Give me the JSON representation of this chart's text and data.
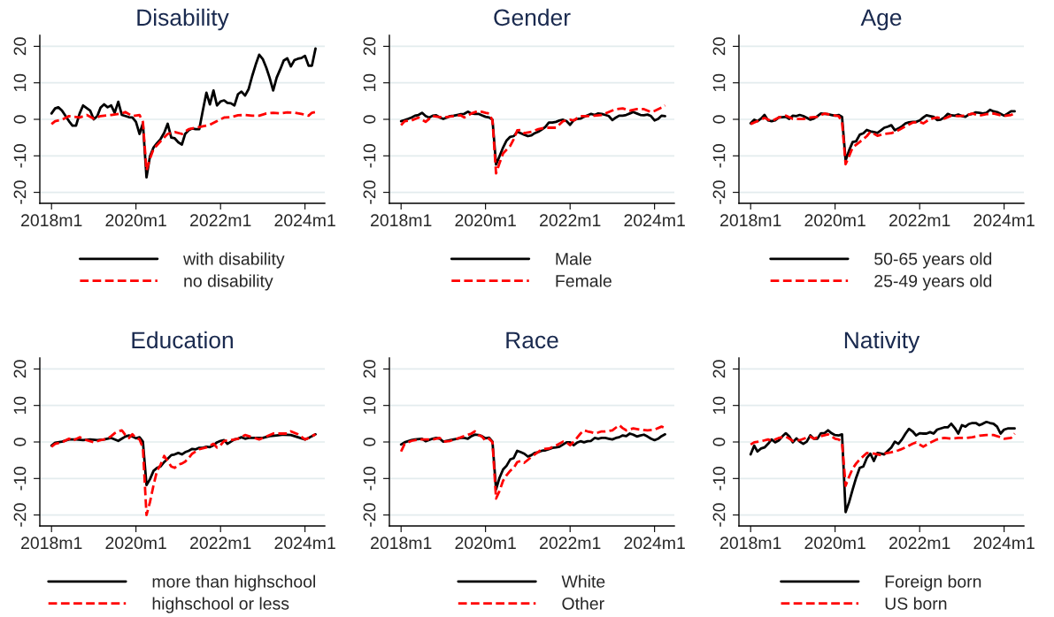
{
  "chart_data": [
    {
      "type": "line",
      "title": "Disability",
      "xlim": [
        "2017-09-22",
        "2024-06-20"
      ],
      "ylim": [
        -23,
        23
      ],
      "xticks": [
        {
          "value": "2018-01",
          "label": "2018m1"
        },
        {
          "value": "2020-01",
          "label": "2020m1"
        },
        {
          "value": "2022-01",
          "label": "2022m1"
        },
        {
          "value": "2024-01",
          "label": "2024m1"
        }
      ],
      "yticks": [
        -20,
        -10,
        0,
        10,
        20
      ],
      "grid": "y",
      "legend": "bottom",
      "series": [
        {
          "name": "with disability",
          "color": "#000000",
          "line_style": "solid",
          "x": [
            "2018-01",
            "2018-02",
            "2018-03",
            "2018-04",
            "2018-06",
            "2018-07",
            "2018-08",
            "2018-09",
            "2018-10",
            "2018-12",
            "2019-01",
            "2019-02",
            "2019-03",
            "2019-04",
            "2019-05",
            "2019-06",
            "2019-07",
            "2019-08",
            "2019-09",
            "2019-10",
            "2019-11",
            "2019-12",
            "2020-01",
            "2020-02",
            "2020-03",
            "2020-04",
            "2020-05",
            "2020-06",
            "2020-07",
            "2020-08",
            "2020-09",
            "2020-10",
            "2020-11",
            "2020-12",
            "2021-01",
            "2021-02",
            "2021-03",
            "2021-04",
            "2021-05",
            "2021-06",
            "2021-07",
            "2021-08",
            "2021-09",
            "2021-10",
            "2021-11",
            "2021-12",
            "2022-01",
            "2022-02",
            "2022-03",
            "2022-04",
            "2022-05",
            "2022-06",
            "2022-07",
            "2022-08",
            "2022-09",
            "2022-10",
            "2022-11",
            "2022-12",
            "2023-01",
            "2023-02",
            "2023-03",
            "2023-04",
            "2023-05",
            "2023-06",
            "2023-07",
            "2023-08",
            "2023-09",
            "2023-10",
            "2023-11",
            "2023-12",
            "2024-01",
            "2024-02",
            "2024-03",
            "2024-04"
          ],
          "values": [
            1.6,
            3.0,
            3.3,
            2.4,
            -0.5,
            -1.7,
            -1.7,
            1.6,
            3.8,
            2.4,
            0,
            0.9,
            3.2,
            4.1,
            3.3,
            3.8,
            1.8,
            4.8,
            1.2,
            0.9,
            0.6,
            0.5,
            -0.7,
            -4.0,
            -1.1,
            -15.9,
            -10.1,
            -7.7,
            -6.5,
            -5.4,
            -3.7,
            -1.2,
            -5.0,
            -5.2,
            -6.3,
            -6.9,
            -4.0,
            -3.0,
            -2.5,
            -2.7,
            -2.7,
            2.4,
            7.3,
            4.1,
            7.9,
            3.8,
            4.9,
            5.2,
            4.5,
            4.4,
            3.8,
            6.9,
            7.6,
            6.5,
            8.3,
            11.8,
            15.0,
            17.7,
            16.5,
            14.1,
            11.4,
            7.9,
            11.4,
            13.7,
            16.1,
            16.7,
            14.5,
            16.2,
            16.6,
            16.8,
            17.4,
            14.7,
            14.7,
            19.4
          ]
        },
        {
          "name": "no disability",
          "color": "#ff0000",
          "line_style": "dashed",
          "x": [
            "2018-01",
            "2018-02",
            "2018-04",
            "2018-06",
            "2018-09",
            "2018-11",
            "2019-01",
            "2019-03",
            "2019-06",
            "2019-09",
            "2019-10",
            "2019-12",
            "2020-02",
            "2020-03",
            "2020-04",
            "2020-05",
            "2020-06",
            "2020-08",
            "2020-10",
            "2020-12",
            "2021-02",
            "2021-04",
            "2021-06",
            "2021-08",
            "2021-10",
            "2021-12",
            "2022-02",
            "2022-04",
            "2022-06",
            "2022-08",
            "2022-10",
            "2022-12",
            "2023-02",
            "2023-04",
            "2023-06",
            "2023-08",
            "2023-10",
            "2023-12",
            "2024-02",
            "2024-03",
            "2024-04"
          ],
          "values": [
            -1.3,
            -0.5,
            -0.1,
            0.9,
            0.5,
            1.2,
            0.2,
            0.9,
            1.2,
            1.6,
            2.0,
            0.9,
            1.2,
            -0.7,
            -14.0,
            -10.8,
            -8.1,
            -6.0,
            -4.0,
            -3.5,
            -4.0,
            -2.7,
            -2.3,
            -1.9,
            -1.5,
            -0.5,
            0.5,
            0.6,
            1.1,
            1.2,
            1.0,
            1.0,
            1.6,
            1.8,
            1.6,
            1.9,
            1.8,
            1.5,
            1.0,
            1.8,
            2.0
          ]
        }
      ]
    },
    {
      "type": "line",
      "title": "Gender",
      "xlim": [
        "2017-09-22",
        "2024-06-20"
      ],
      "ylim": [
        -23,
        23
      ],
      "xticks": [
        {
          "value": "2018-01",
          "label": "2018m1"
        },
        {
          "value": "2020-01",
          "label": "2020m1"
        },
        {
          "value": "2022-01",
          "label": "2022m1"
        },
        {
          "value": "2024-01",
          "label": "2024m1"
        }
      ],
      "yticks": [
        -20,
        -10,
        0,
        10,
        20
      ],
      "grid": "y",
      "legend": "bottom",
      "x": [
        "2018-01",
        "2018-02",
        "2018-03",
        "2018-04",
        "2018-05",
        "2018-06",
        "2018-07",
        "2018-08",
        "2018-09",
        "2018-10",
        "2018-11",
        "2018-12",
        "2019-01",
        "2019-02",
        "2019-03",
        "2019-04",
        "2019-05",
        "2019-06",
        "2019-07",
        "2019-08",
        "2019-09",
        "2019-10",
        "2019-11",
        "2019-12",
        "2020-01",
        "2020-02",
        "2020-03",
        "2020-04",
        "2020-05",
        "2020-06",
        "2020-07",
        "2020-08",
        "2020-09",
        "2020-10",
        "2020-11",
        "2020-12",
        "2021-01",
        "2021-02",
        "2021-03",
        "2021-04",
        "2021-05",
        "2021-06",
        "2021-07",
        "2021-08",
        "2021-09",
        "2021-10",
        "2021-11",
        "2021-12",
        "2022-01",
        "2022-02",
        "2022-03",
        "2022-04",
        "2022-05",
        "2022-06",
        "2022-07",
        "2022-08",
        "2022-09",
        "2022-10",
        "2022-11",
        "2022-12",
        "2023-01",
        "2023-02",
        "2023-03",
        "2023-04",
        "2023-05",
        "2023-06",
        "2023-07",
        "2023-08",
        "2023-09",
        "2023-10",
        "2023-11",
        "2023-12",
        "2024-01",
        "2024-02",
        "2024-03",
        "2024-04"
      ],
      "series": [
        {
          "name": "Male",
          "color": "#000000",
          "line_style": "solid",
          "values": [
            -0.5,
            -0.2,
            0.1,
            0.5,
            1.0,
            1.2,
            1.8,
            0.9,
            0.5,
            1.0,
            1.1,
            0.5,
            0.1,
            0.5,
            0.9,
            1.0,
            1.2,
            1.4,
            1.5,
            2.1,
            1.6,
            1.5,
            1.5,
            1.1,
            0.7,
            0.5,
            -0.1,
            -12.4,
            -10.1,
            -7.7,
            -5.8,
            -4.8,
            -4.6,
            -3.4,
            -3.8,
            -4.2,
            -4.6,
            -4.4,
            -3.8,
            -3.4,
            -2.8,
            -2.1,
            -0.9,
            -0.9,
            -0.7,
            -0.3,
            -0.1,
            -0.5,
            -1.5,
            -0.3,
            0.1,
            0.2,
            0.7,
            1.1,
            1.5,
            1.2,
            1.6,
            1.5,
            1.2,
            0.9,
            -0.2,
            0.5,
            1.0,
            1.0,
            1.2,
            1.6,
            2.0,
            1.6,
            1.2,
            1.1,
            1.3,
            0.9,
            -0.3,
            0.1,
            1.0,
            0.9
          ]
        },
        {
          "name": "Female",
          "color": "#ff0000",
          "line_style": "dashed",
          "x": [
            "2018-01",
            "2018-02",
            "2018-04",
            "2018-06",
            "2018-08",
            "2018-10",
            "2019-01",
            "2019-04",
            "2019-06",
            "2019-07",
            "2019-09",
            "2019-11",
            "2020-01",
            "2020-02",
            "2020-03",
            "2020-04",
            "2020-05",
            "2020-06",
            "2020-08",
            "2020-09",
            "2020-10",
            "2020-11",
            "2020-12",
            "2021-02",
            "2021-04",
            "2021-06",
            "2021-07",
            "2021-09",
            "2021-11",
            "2022-01",
            "2022-02",
            "2022-04",
            "2022-06",
            "2022-08",
            "2022-10",
            "2022-12",
            "2023-02",
            "2023-04",
            "2023-06",
            "2023-08",
            "2023-10",
            "2023-12",
            "2024-01",
            "2024-03",
            "2024-04"
          ],
          "values": [
            -1.6,
            -0.5,
            -0.3,
            0.5,
            -0.7,
            0.9,
            0.5,
            0.9,
            1.1,
            0.5,
            1.6,
            2.3,
            1.8,
            1.6,
            -0.3,
            -14.8,
            -12.0,
            -9.3,
            -7.3,
            -5.4,
            -3.0,
            -2.9,
            -3.8,
            -3.4,
            -2.7,
            -2.3,
            -2.3,
            -2.3,
            -0.5,
            -0.1,
            -0.3,
            0.9,
            0.9,
            1.0,
            1.2,
            2.0,
            2.8,
            3.0,
            2.4,
            2.8,
            2.8,
            2.0,
            2.3,
            3.2,
            3.8
          ]
        }
      ]
    },
    {
      "type": "line",
      "title": "Age",
      "xlim": [
        "2017-09-22",
        "2024-06-20"
      ],
      "ylim": [
        -23,
        23
      ],
      "xticks": [
        {
          "value": "2018-01",
          "label": "2018m1"
        },
        {
          "value": "2020-01",
          "label": "2020m1"
        },
        {
          "value": "2022-01",
          "label": "2022m1"
        },
        {
          "value": "2024-01",
          "label": "2024m1"
        }
      ],
      "yticks": [
        -20,
        -10,
        0,
        10,
        20
      ],
      "grid": "y",
      "legend": "bottom",
      "x": [
        "2018-01",
        "2018-02",
        "2018-03",
        "2018-04",
        "2018-05",
        "2018-06",
        "2018-07",
        "2018-08",
        "2018-09",
        "2018-10",
        "2018-11",
        "2018-12",
        "2019-01",
        "2019-02",
        "2019-03",
        "2019-04",
        "2019-05",
        "2019-06",
        "2019-07",
        "2019-08",
        "2019-09",
        "2019-10",
        "2019-11",
        "2019-12",
        "2020-01",
        "2020-02",
        "2020-03",
        "2020-04",
        "2020-05",
        "2020-06",
        "2020-07",
        "2020-08",
        "2020-09",
        "2020-10",
        "2020-11",
        "2020-12",
        "2021-01",
        "2021-02",
        "2021-03",
        "2021-04",
        "2021-05",
        "2021-06",
        "2021-07",
        "2021-08",
        "2021-09",
        "2021-10",
        "2021-11",
        "2021-12",
        "2022-01",
        "2022-02",
        "2022-03",
        "2022-04",
        "2022-05",
        "2022-06",
        "2022-07",
        "2022-08",
        "2022-09",
        "2022-10",
        "2022-11",
        "2022-12",
        "2023-01",
        "2023-02",
        "2023-03",
        "2023-04",
        "2023-05",
        "2023-06",
        "2023-07",
        "2023-08",
        "2023-09",
        "2023-10",
        "2023-11",
        "2023-12",
        "2024-01",
        "2024-02",
        "2024-03",
        "2024-04"
      ],
      "series": [
        {
          "name": "50-65 years old",
          "color": "#000000",
          "line_style": "solid",
          "values": [
            -1.1,
            -0.1,
            -0.5,
            0.2,
            1.2,
            -0.3,
            -0.5,
            -0.3,
            0.5,
            0.6,
            0.7,
            0.1,
            1.0,
            0.9,
            1.2,
            0.9,
            0.4,
            -0.1,
            0.2,
            0.9,
            1.6,
            1.5,
            1.4,
            1.2,
            1.0,
            1.2,
            0.7,
            -11.3,
            -8.5,
            -6.2,
            -6.0,
            -4.2,
            -3.8,
            -2.9,
            -3.3,
            -3.5,
            -3.7,
            -3.0,
            -2.3,
            -2.0,
            -1.6,
            -3.0,
            -2.5,
            -1.9,
            -1.1,
            -0.8,
            -0.7,
            -0.7,
            -0.3,
            0.5,
            1.1,
            0.9,
            0.7,
            -0.2,
            -0.1,
            0.5,
            1.5,
            1.1,
            1.0,
            1.3,
            0.9,
            0.7,
            1.3,
            1.5,
            1.9,
            1.8,
            1.6,
            1.8,
            2.6,
            2.2,
            2.0,
            1.5,
            1.0,
            1.6,
            2.2,
            2.2
          ]
        },
        {
          "name": "25-49 years old",
          "color": "#ff0000",
          "line_style": "dashed",
          "x": [
            "2018-01",
            "2018-03",
            "2018-05",
            "2018-07",
            "2018-09",
            "2018-11",
            "2019-01",
            "2019-04",
            "2019-06",
            "2019-08",
            "2019-10",
            "2019-12",
            "2020-02",
            "2020-03",
            "2020-04",
            "2020-05",
            "2020-06",
            "2020-08",
            "2020-10",
            "2020-11",
            "2021-01",
            "2021-03",
            "2021-05",
            "2021-07",
            "2021-09",
            "2021-11",
            "2022-01",
            "2022-02",
            "2022-04",
            "2022-06",
            "2022-08",
            "2022-10",
            "2022-12",
            "2023-02",
            "2023-04",
            "2023-06",
            "2023-08",
            "2023-10",
            "2023-12",
            "2024-01",
            "2024-03",
            "2024-04"
          ],
          "values": [
            -1.3,
            -0.5,
            0.4,
            -0.5,
            0.5,
            1.0,
            0.1,
            0.1,
            0.5,
            0.7,
            1.6,
            1.2,
            0.9,
            -0.7,
            -12.3,
            -10.1,
            -7.7,
            -6.2,
            -4.6,
            -3.4,
            -4.5,
            -4.0,
            -3.8,
            -3.0,
            -1.9,
            -0.9,
            -0.7,
            -1.1,
            0.1,
            0.5,
            0.2,
            1.0,
            0.9,
            1.0,
            1.6,
            1.0,
            1.4,
            1.6,
            1.1,
            0.9,
            1.2,
            1.6
          ]
        }
      ]
    },
    {
      "type": "line",
      "title": "Education",
      "xlim": [
        "2017-09-22",
        "2024-06-20"
      ],
      "ylim": [
        -23,
        23
      ],
      "xticks": [
        {
          "value": "2018-01",
          "label": "2018m1"
        },
        {
          "value": "2020-01",
          "label": "2020m1"
        },
        {
          "value": "2022-01",
          "label": "2022m1"
        },
        {
          "value": "2024-01",
          "label": "2024m1"
        }
      ],
      "yticks": [
        -20,
        -10,
        0,
        10,
        20
      ],
      "grid": "y",
      "legend": "bottom",
      "series": [
        {
          "name": "more than highschool",
          "color": "#000000",
          "line_style": "solid",
          "x": [
            "2018-01",
            "2018-02",
            "2018-04",
            "2018-06",
            "2018-08",
            "2018-10",
            "2018-12",
            "2019-02",
            "2019-04",
            "2019-06",
            "2019-08",
            "2019-09",
            "2019-10",
            "2019-11",
            "2019-12",
            "2020-01",
            "2020-02",
            "2020-03",
            "2020-04",
            "2020-05",
            "2020-06",
            "2020-07",
            "2020-08",
            "2020-09",
            "2020-10",
            "2020-11",
            "2020-12",
            "2021-01",
            "2021-02",
            "2021-03",
            "2021-04",
            "2021-05",
            "2021-06",
            "2021-07",
            "2021-08",
            "2021-09",
            "2021-10",
            "2021-11",
            "2021-12",
            "2022-01",
            "2022-02",
            "2022-03",
            "2022-04",
            "2022-05",
            "2022-06",
            "2022-07",
            "2022-08",
            "2022-09",
            "2022-11",
            "2023-01",
            "2023-03",
            "2023-05",
            "2023-07",
            "2023-09",
            "2023-11",
            "2024-01",
            "2024-02",
            "2024-03",
            "2024-04"
          ],
          "values": [
            -1.0,
            -0.2,
            0.1,
            0.7,
            0.7,
            0.5,
            0.7,
            0.5,
            0.7,
            1.1,
            0.3,
            0.9,
            1.5,
            1.8,
            1.5,
            1.0,
            1.3,
            0.1,
            -11.8,
            -10.2,
            -7.9,
            -7.1,
            -6.7,
            -5.5,
            -4.6,
            -3.6,
            -3.4,
            -3.0,
            -3.4,
            -2.8,
            -2.4,
            -1.9,
            -2.0,
            -1.6,
            -1.6,
            -1.3,
            -1.4,
            -0.9,
            -0.1,
            0.3,
            0.5,
            -0.5,
            0.1,
            0.7,
            0.9,
            1.3,
            0.9,
            1.1,
            1.1,
            1.1,
            1.6,
            1.8,
            2.0,
            1.9,
            1.3,
            0.7,
            1.1,
            1.6,
            2.1
          ]
        },
        {
          "name": "highschool or less",
          "color": "#ff0000",
          "line_style": "dashed",
          "x": [
            "2018-01",
            "2018-02",
            "2018-04",
            "2018-06",
            "2018-07",
            "2018-09",
            "2018-11",
            "2019-01",
            "2019-03",
            "2019-05",
            "2019-06",
            "2019-07",
            "2019-08",
            "2019-09",
            "2019-10",
            "2019-11",
            "2019-12",
            "2020-01",
            "2020-02",
            "2020-03",
            "2020-04",
            "2020-05",
            "2020-06",
            "2020-07",
            "2020-08",
            "2020-09",
            "2020-10",
            "2020-11",
            "2020-12",
            "2021-01",
            "2021-02",
            "2021-03",
            "2021-04",
            "2021-05",
            "2021-07",
            "2021-09",
            "2021-11",
            "2021-12",
            "2022-01",
            "2022-02",
            "2022-04",
            "2022-06",
            "2022-08",
            "2022-10",
            "2022-12",
            "2023-02",
            "2023-04",
            "2023-06",
            "2023-08",
            "2023-09",
            "2023-11",
            "2024-01",
            "2024-02",
            "2024-04"
          ],
          "values": [
            -1.3,
            -0.5,
            -0.1,
            0.9,
            0.3,
            1.3,
            0.5,
            -0.1,
            0.5,
            0.9,
            1.6,
            2.4,
            2.9,
            3.2,
            1.9,
            1.1,
            2.1,
            1.1,
            0.7,
            -1.6,
            -20.0,
            -16.5,
            -11.8,
            -7.9,
            -6.2,
            -3.8,
            -5.2,
            -6.7,
            -7.1,
            -6.2,
            -5.9,
            -5.4,
            -4.4,
            -3.2,
            -2.0,
            -1.5,
            -0.5,
            -1.5,
            -0.9,
            0.3,
            0.5,
            0.9,
            1.9,
            1.3,
            0.7,
            1.5,
            2.3,
            2.3,
            2.3,
            2.9,
            2.1,
            0.7,
            1.1,
            2.1
          ]
        }
      ]
    },
    {
      "type": "line",
      "title": "Race",
      "xlim": [
        "2017-09-22",
        "2024-06-20"
      ],
      "ylim": [
        -23,
        23
      ],
      "xticks": [
        {
          "value": "2018-01",
          "label": "2018m1"
        },
        {
          "value": "2020-01",
          "label": "2020m1"
        },
        {
          "value": "2022-01",
          "label": "2022m1"
        },
        {
          "value": "2024-01",
          "label": "2024m1"
        }
      ],
      "yticks": [
        -20,
        -10,
        0,
        10,
        20
      ],
      "grid": "y",
      "legend": "bottom",
      "series": [
        {
          "name": "White",
          "color": "#000000",
          "line_style": "solid",
          "x": [
            "2018-01",
            "2018-02",
            "2018-04",
            "2018-05",
            "2018-07",
            "2018-08",
            "2018-10",
            "2018-11",
            "2018-12",
            "2019-01",
            "2019-03",
            "2019-05",
            "2019-06",
            "2019-07",
            "2019-08",
            "2019-09",
            "2019-10",
            "2019-11",
            "2019-12",
            "2020-01",
            "2020-02",
            "2020-03",
            "2020-04",
            "2020-05",
            "2020-06",
            "2020-07",
            "2020-08",
            "2020-09",
            "2020-10",
            "2020-11",
            "2020-12",
            "2021-01",
            "2021-02",
            "2021-03",
            "2021-04",
            "2021-05",
            "2021-06",
            "2021-07",
            "2021-08",
            "2021-09",
            "2021-10",
            "2021-11",
            "2021-12",
            "2022-01",
            "2022-02",
            "2022-03",
            "2022-04",
            "2022-05",
            "2022-06",
            "2022-07",
            "2022-08",
            "2022-09",
            "2022-10",
            "2022-11",
            "2022-12",
            "2023-01",
            "2023-02",
            "2023-03",
            "2023-04",
            "2023-05",
            "2023-06",
            "2023-07",
            "2023-08",
            "2023-09",
            "2023-10",
            "2023-11",
            "2023-12",
            "2024-01",
            "2024-02",
            "2024-03",
            "2024-04"
          ],
          "values": [
            -0.7,
            -0.1,
            0.5,
            0.7,
            0.9,
            0.2,
            0.9,
            1.1,
            0.9,
            0.1,
            0.5,
            0.9,
            1.1,
            1.1,
            0.9,
            1.6,
            2.0,
            1.9,
            1.6,
            1.0,
            1.2,
            0.1,
            -13.0,
            -9.8,
            -7.5,
            -6.5,
            -4.8,
            -4.4,
            -2.4,
            -2.8,
            -3.2,
            -4.0,
            -3.6,
            -3.0,
            -2.8,
            -2.4,
            -2.3,
            -2.0,
            -1.6,
            -1.5,
            -1.3,
            -0.7,
            -0.1,
            -0.1,
            -0.9,
            -0.2,
            0.2,
            -0.1,
            0.2,
            0.3,
            1.1,
            0.9,
            1.1,
            1.1,
            0.9,
            0.7,
            1.1,
            1.3,
            1.8,
            1.6,
            2.3,
            2.0,
            1.5,
            1.8,
            2.0,
            1.5,
            0.9,
            0.5,
            0.9,
            1.6,
            2.1
          ]
        },
        {
          "name": "Other",
          "color": "#ff0000",
          "line_style": "dashed",
          "x": [
            "2018-01",
            "2018-02",
            "2018-04",
            "2018-06",
            "2018-08",
            "2018-10",
            "2018-12",
            "2019-01",
            "2019-03",
            "2019-05",
            "2019-07",
            "2019-09",
            "2019-10",
            "2019-11",
            "2019-12",
            "2020-01",
            "2020-02",
            "2020-03",
            "2020-04",
            "2020-05",
            "2020-06",
            "2020-07",
            "2020-08",
            "2020-09",
            "2020-10",
            "2020-11",
            "2020-12",
            "2021-01",
            "2021-02",
            "2021-03",
            "2021-05",
            "2021-07",
            "2021-09",
            "2021-11",
            "2021-12",
            "2022-01",
            "2022-02",
            "2022-03",
            "2022-04",
            "2022-05",
            "2022-06",
            "2022-07",
            "2022-08",
            "2022-09",
            "2022-10",
            "2022-11",
            "2023-01",
            "2023-03",
            "2023-04",
            "2023-05",
            "2023-07",
            "2023-09",
            "2023-11",
            "2024-01",
            "2024-03",
            "2024-04"
          ],
          "values": [
            -2.6,
            -0.5,
            0.3,
            0.7,
            0.7,
            0.7,
            1.1,
            0.1,
            0.3,
            0.9,
            1.6,
            2.3,
            2.9,
            1.9,
            1.5,
            0.3,
            0.9,
            -0.1,
            -15.5,
            -13.4,
            -10.6,
            -9.1,
            -7.9,
            -7.1,
            -5.5,
            -5.2,
            -5.7,
            -4.9,
            -4.1,
            -3.4,
            -2.0,
            -1.8,
            -1.0,
            0.1,
            -0.1,
            -0.9,
            0.1,
            1.1,
            2.3,
            3.2,
            2.9,
            2.7,
            2.4,
            2.6,
            2.9,
            2.9,
            3.2,
            4.6,
            3.8,
            3.2,
            3.7,
            3.4,
            3.2,
            3.4,
            4.2,
            3.8
          ]
        }
      ]
    },
    {
      "type": "line",
      "title": "Nativity",
      "xlim": [
        "2017-09-22",
        "2024-06-20"
      ],
      "ylim": [
        -23,
        23
      ],
      "xticks": [
        {
          "value": "2018-01",
          "label": "2018m1"
        },
        {
          "value": "2020-01",
          "label": "2020m1"
        },
        {
          "value": "2022-01",
          "label": "2022m1"
        },
        {
          "value": "2024-01",
          "label": "2024m1"
        }
      ],
      "yticks": [
        -20,
        -10,
        0,
        10,
        20
      ],
      "grid": "y",
      "legend": "bottom",
      "x": [
        "2018-01",
        "2018-02",
        "2018-03",
        "2018-04",
        "2018-05",
        "2018-06",
        "2018-07",
        "2018-08",
        "2018-09",
        "2018-10",
        "2018-11",
        "2018-12",
        "2019-01",
        "2019-02",
        "2019-03",
        "2019-04",
        "2019-05",
        "2019-06",
        "2019-07",
        "2019-08",
        "2019-09",
        "2019-10",
        "2019-11",
        "2019-12",
        "2020-01",
        "2020-02",
        "2020-03",
        "2020-04",
        "2020-05",
        "2020-06",
        "2020-07",
        "2020-08",
        "2020-09",
        "2020-10",
        "2020-11",
        "2020-12",
        "2021-01",
        "2021-02",
        "2021-03",
        "2021-04",
        "2021-05",
        "2021-06",
        "2021-07",
        "2021-08",
        "2021-09",
        "2021-10",
        "2021-11",
        "2021-12",
        "2022-01",
        "2022-02",
        "2022-03",
        "2022-04",
        "2022-05",
        "2022-06",
        "2022-07",
        "2022-08",
        "2022-09",
        "2022-10",
        "2022-11",
        "2022-12",
        "2023-01",
        "2023-02",
        "2023-03",
        "2023-04",
        "2023-05",
        "2023-06",
        "2023-07",
        "2023-08",
        "2023-09",
        "2023-10",
        "2023-11",
        "2023-12",
        "2024-01",
        "2024-02",
        "2024-03",
        "2024-04"
      ],
      "series": [
        {
          "name": "Foreign born",
          "color": "#000000",
          "line_style": "solid",
          "values": [
            -3.4,
            -1.0,
            -2.6,
            -1.8,
            -1.5,
            -0.5,
            0.7,
            -0.1,
            0.4,
            1.5,
            2.4,
            1.5,
            -0.1,
            1.0,
            0.1,
            -0.5,
            0.1,
            1.8,
            0.9,
            0.9,
            2.4,
            2.4,
            3.2,
            2.4,
            1.9,
            1.8,
            2.1,
            -19.2,
            -16.5,
            -13.0,
            -9.8,
            -7.1,
            -6.7,
            -4.4,
            -3.2,
            -5.2,
            -3.0,
            -3.2,
            -3.4,
            -2.4,
            -1.5,
            0.1,
            -0.5,
            0.7,
            2.3,
            3.6,
            2.9,
            1.8,
            2.4,
            2.3,
            2.3,
            2.7,
            2.3,
            3.4,
            3.7,
            4.0,
            4.0,
            5.0,
            3.8,
            2.3,
            4.6,
            4.2,
            4.9,
            5.2,
            5.2,
            4.6,
            5.0,
            5.5,
            5.2,
            5.0,
            4.2,
            2.3,
            3.4,
            3.7,
            3.7,
            3.7
          ]
        },
        {
          "name": "US born",
          "color": "#ff0000",
          "line_style": "dashed",
          "x": [
            "2018-01",
            "2018-02",
            "2018-04",
            "2018-06",
            "2018-07",
            "2018-09",
            "2018-11",
            "2019-01",
            "2019-03",
            "2019-05",
            "2019-06",
            "2019-07",
            "2019-09",
            "2019-11",
            "2020-01",
            "2020-02",
            "2020-03",
            "2020-04",
            "2020-05",
            "2020-06",
            "2020-07",
            "2020-08",
            "2020-10",
            "2020-12",
            "2021-02",
            "2021-03",
            "2021-05",
            "2021-07",
            "2021-09",
            "2021-11",
            "2021-12",
            "2022-02",
            "2022-04",
            "2022-06",
            "2022-08",
            "2022-10",
            "2022-12",
            "2023-02",
            "2023-04",
            "2023-06",
            "2023-08",
            "2023-10",
            "2023-12",
            "2024-01",
            "2024-03",
            "2024-04"
          ],
          "values": [
            -0.7,
            -0.1,
            0.2,
            0.7,
            0.3,
            1.1,
            1.5,
            0.3,
            0.5,
            1.2,
            1.5,
            0.9,
            1.6,
            2.1,
            0.9,
            0.7,
            -0.2,
            -12.0,
            -9.5,
            -7.3,
            -5.9,
            -4.8,
            -3.0,
            -3.2,
            -3.6,
            -3.2,
            -2.8,
            -2.3,
            -1.5,
            -0.5,
            -0.1,
            -1.3,
            -0.2,
            0.7,
            1.1,
            0.9,
            1.1,
            1.1,
            1.3,
            1.7,
            1.9,
            1.9,
            1.3,
            0.9,
            1.1,
            2.3
          ]
        }
      ]
    }
  ]
}
